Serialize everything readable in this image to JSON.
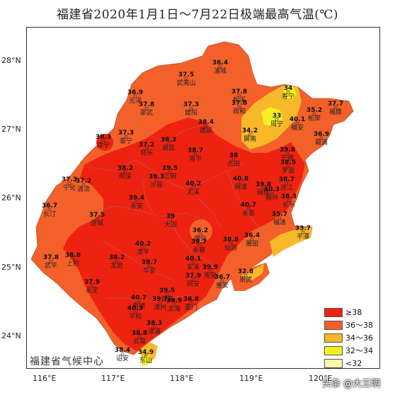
{
  "title": "福建省2020年1月1日～7月22日极端最高气温(℃)",
  "lat_labels": [
    "28°N",
    "27°N",
    "26°N",
    "25°N",
    "24°N"
  ],
  "lon_labels": [
    "116°E",
    "117°E",
    "118°E",
    "119°E",
    "120°E"
  ],
  "legend": [
    {
      "label": "≥38",
      "color": "#ee2211"
    },
    {
      "label": "36～38",
      "color": "#f4602a"
    },
    {
      "label": "34～36",
      "color": "#f7b829"
    },
    {
      "label": "32～34",
      "color": "#f5f01e"
    },
    {
      "label": "<32",
      "color": "#fdf7a6"
    }
  ],
  "credit": "福建省气候中心",
  "watermark": "头条 @大三明",
  "stations": [
    {
      "name": "浦城",
      "value": "36.4"
    },
    {
      "name": "武夷山",
      "value": "37.5"
    },
    {
      "name": "光泽",
      "value": "36.9"
    },
    {
      "name": "邵武",
      "value": "37.8"
    },
    {
      "name": "建阳",
      "value": "37.3"
    },
    {
      "name": "松溪",
      "value": "37.8"
    },
    {
      "name": "政和",
      "value": "37.8"
    },
    {
      "name": "寿宁",
      "value": "34"
    },
    {
      "name": "福鼎",
      "value": "37.7"
    },
    {
      "name": "周宁",
      "value": "33"
    },
    {
      "name": "柘荣",
      "value": "35.2"
    },
    {
      "name": "福安",
      "value": "40.1"
    },
    {
      "name": "建瓯",
      "value": "38.4"
    },
    {
      "name": "屏南",
      "value": "34.2"
    },
    {
      "name": "霞浦",
      "value": "36.9"
    },
    {
      "name": "建宁",
      "value": "38.3"
    },
    {
      "name": "泰宁",
      "value": "37.3"
    },
    {
      "name": "将乐",
      "value": "37.2"
    },
    {
      "name": "顺昌",
      "value": "38.3"
    },
    {
      "name": "南平",
      "value": "38.7"
    },
    {
      "name": "古田",
      "value": "38"
    },
    {
      "name": "宁德",
      "value": "39.8"
    },
    {
      "name": "罗源",
      "value": "38.5"
    },
    {
      "name": "明溪",
      "value": "38.2"
    },
    {
      "name": "沙县",
      "value": "39.3"
    },
    {
      "name": "三明",
      "value": "39.5"
    },
    {
      "name": "宁化",
      "value": "37.3"
    },
    {
      "name": "清流",
      "value": "37.2"
    },
    {
      "name": "尤溪",
      "value": "40.2"
    },
    {
      "name": "闽清",
      "value": "40.8"
    },
    {
      "name": "闽侯",
      "value": "39.8"
    },
    {
      "name": "福州",
      "value": "40.3"
    },
    {
      "name": "连江",
      "value": "38.7"
    },
    {
      "name": "长乐",
      "value": "38.3"
    },
    {
      "name": "永安",
      "value": "39.4"
    },
    {
      "name": "长汀",
      "value": "36.7"
    },
    {
      "name": "永泰",
      "value": "40.7"
    },
    {
      "name": "连城",
      "value": "37.5"
    },
    {
      "name": "大田",
      "value": "39"
    },
    {
      "name": "福清",
      "value": "35.7"
    },
    {
      "name": "平潭",
      "value": "33.7"
    },
    {
      "name": "德化",
      "value": "36.2"
    },
    {
      "name": "仙游",
      "value": "38.8"
    },
    {
      "name": "莆田",
      "value": "36.4"
    },
    {
      "name": "漳平",
      "value": "40.2"
    },
    {
      "name": "永春",
      "value": "39.7"
    },
    {
      "name": "武平",
      "value": "37.8"
    },
    {
      "name": "上杭",
      "value": "38.8"
    },
    {
      "name": "龙岩",
      "value": "38.2"
    },
    {
      "name": "华安",
      "value": "39.7"
    },
    {
      "name": "安溪",
      "value": "40.1"
    },
    {
      "name": "南安",
      "value": "39.9"
    },
    {
      "name": "惠安",
      "value": "36.7"
    },
    {
      "name": "崇武",
      "value": "32.8"
    },
    {
      "name": "永定",
      "value": "37.9"
    },
    {
      "name": "同安",
      "value": "37.9"
    },
    {
      "name": "长泰",
      "value": "39.5"
    },
    {
      "name": "南靖",
      "value": "40.7"
    },
    {
      "name": "漳州",
      "value": "39.7"
    },
    {
      "name": "龙海",
      "value": "39.9"
    },
    {
      "name": "厦门",
      "value": "36.8"
    },
    {
      "name": "平和",
      "value": "40.3"
    },
    {
      "name": "漳浦",
      "value": "38.3"
    },
    {
      "name": "云霄",
      "value": "38.8"
    },
    {
      "name": "诏安",
      "value": "38.4"
    },
    {
      "name": "东山",
      "value": "34.9"
    }
  ]
}
